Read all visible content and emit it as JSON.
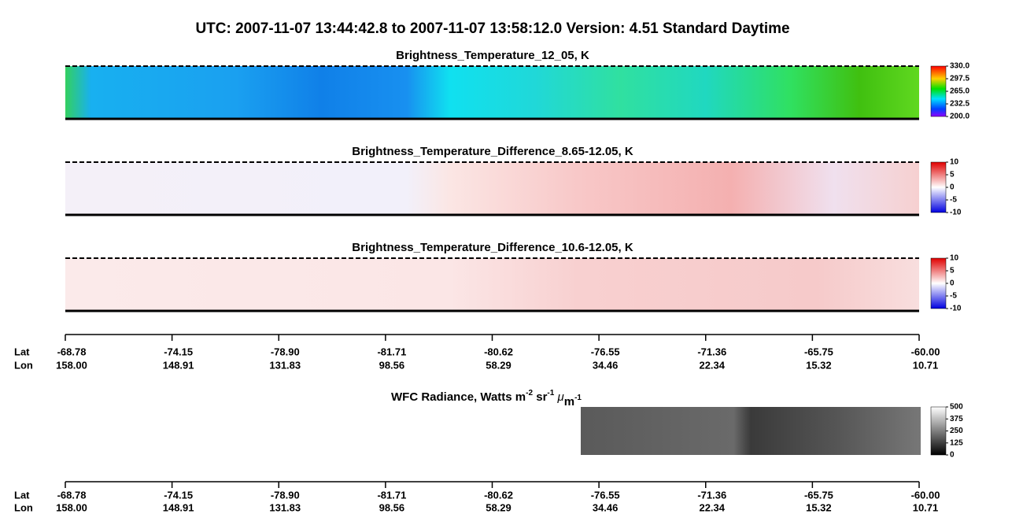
{
  "title": "UTC:  2007-11-07   13:44:42.8  to  2007-11-07   13:58:12.0    Version: 4.51  Standard Daytime",
  "panels": [
    {
      "title": "Brightness_Temperature_12_05, K",
      "colorbar": [
        "330.0",
        "297.5",
        "265.0",
        "232.5",
        "200.0"
      ]
    },
    {
      "title": "Brightness_Temperature_Difference_8.65-12.05, K",
      "colorbar": [
        "10",
        "5",
        "0",
        "-5",
        "-10"
      ]
    },
    {
      "title": "Brightness_Temperature_Difference_10.6-12.05, K",
      "colorbar": [
        "10",
        "5",
        "0",
        "-5",
        "-10"
      ]
    }
  ],
  "wfc": {
    "title_parts": [
      "WFC Radiance, Watts m",
      "-2",
      " sr",
      "-1",
      " ",
      "μ",
      "m",
      "-1"
    ],
    "colorbar": [
      "500",
      "375",
      "250",
      "125",
      "0"
    ]
  },
  "axis": {
    "lat_label": "Lat",
    "lon_label": "Lon",
    "lat": [
      "-68.78",
      "-74.15",
      "-78.90",
      "-81.71",
      "-80.62",
      "-76.55",
      "-71.36",
      "-65.75",
      "-60.00"
    ],
    "lon": [
      "158.00",
      "148.91",
      "131.83",
      "98.56",
      "58.29",
      "34.46",
      "22.34",
      "15.32",
      "10.71"
    ]
  }
}
